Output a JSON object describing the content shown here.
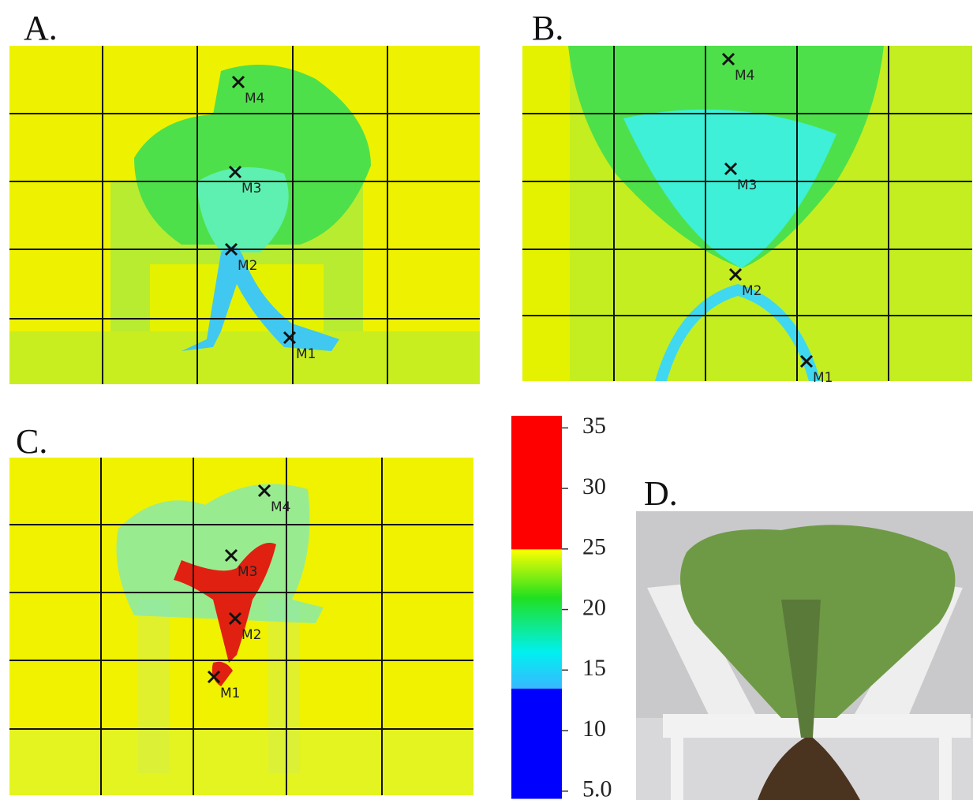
{
  "panels": [
    {
      "label": "A.",
      "markers": [
        "M4",
        "M3",
        "M2",
        "M1"
      ]
    },
    {
      "label": "B.",
      "markers": [
        "M4",
        "M3",
        "M2",
        "M1"
      ]
    },
    {
      "label": "C.",
      "markers": [
        "M4",
        "M3",
        "M2",
        "M1"
      ]
    },
    {
      "label": "D."
    }
  ],
  "colorbar": {
    "lim": [
      4.4,
      36
    ],
    "ticks": [
      35,
      30,
      25,
      20,
      15,
      10,
      {
        "value": 5,
        "label": "5.0"
      }
    ],
    "stops": [
      {
        "value": 4.4,
        "color": "#0000ff"
      },
      {
        "value": 13.5,
        "color": "#0000ff"
      },
      {
        "value": 13.5,
        "color": "#38b8ff"
      },
      {
        "value": 16.5,
        "color": "#00f0f0"
      },
      {
        "value": 21,
        "color": "#20e020"
      },
      {
        "value": 25,
        "color": "#ffff00"
      },
      {
        "value": 25,
        "color": "#ff0000"
      },
      {
        "value": 36,
        "color": "#ff0000"
      }
    ]
  }
}
